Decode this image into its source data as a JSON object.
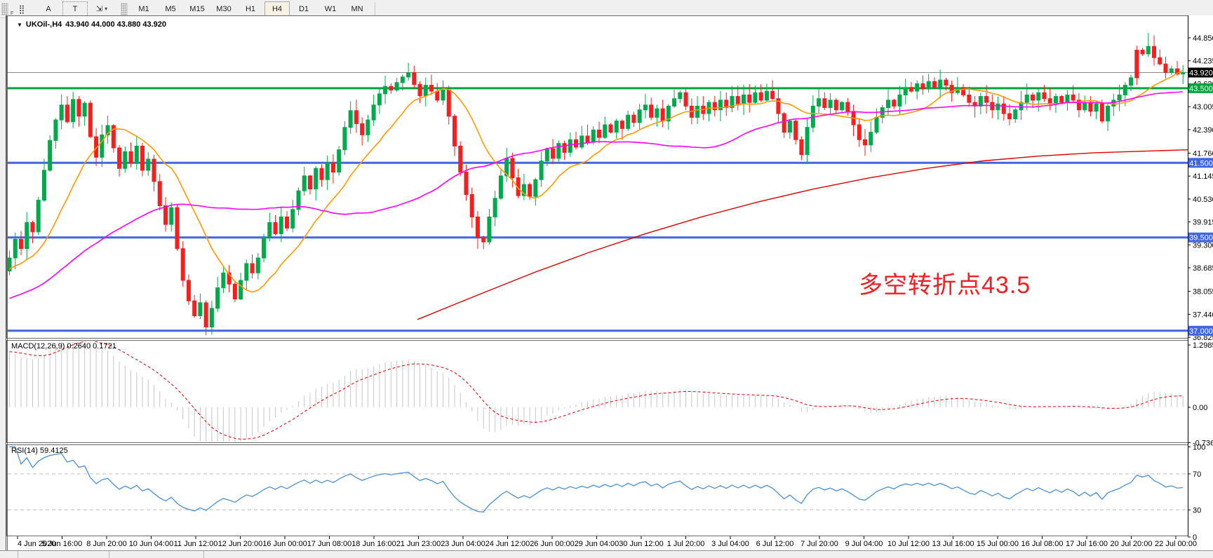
{
  "toolbar": {
    "icons": [
      {
        "name": "period-separators-icon",
        "glyph": "⣿",
        "sub": "F"
      },
      {
        "name": "text-label-icon",
        "glyph": "A"
      },
      {
        "name": "text-box-icon",
        "glyph": "T"
      },
      {
        "name": "arrows-tool-icon",
        "glyph": "⇲"
      },
      {
        "name": "dropdown-caret-icon",
        "glyph": "▾"
      }
    ],
    "timeframes": [
      "M1",
      "M5",
      "M15",
      "M30",
      "H1",
      "H4",
      "D1",
      "W1",
      "MN"
    ],
    "active_timeframe": "H4"
  },
  "chart": {
    "dropdown_glyph": "▼",
    "symbol_title": "UKOil-,H4",
    "ohlc_display": "43.940 44.000 43.880 43.920"
  },
  "annotation": {
    "text": "多空转折点43.5",
    "color": "#ed2024"
  },
  "macd_panel": {
    "label": "MACD(12,26,9) 0.2640 0.1721",
    "ticks": [
      "1.2985",
      "0.00",
      "-0.7362"
    ]
  },
  "rsi_panel": {
    "label": "RSI(14) 59.4125",
    "ticks": [
      "100",
      "70",
      "30",
      "0"
    ]
  },
  "price_axis_ticks": [
    "44.850",
    "44.235",
    "43.620",
    "43.005",
    "42.390",
    "41.760",
    "41.145",
    "40.530",
    "39.915",
    "39.300",
    "38.685",
    "38.055",
    "37.440",
    "36.825"
  ],
  "price_tags": [
    {
      "label": "43.920",
      "price": 43.92,
      "bg": "#000000"
    },
    {
      "label": "43.500",
      "price": 43.5,
      "bg": "#00a43c"
    },
    {
      "label": "41.500",
      "price": 41.5,
      "bg": "#4066e0"
    },
    {
      "label": "39.500",
      "price": 39.5,
      "bg": "#4066e0"
    },
    {
      "label": "37.000",
      "price": 37.0,
      "bg": "#4066e0"
    }
  ],
  "time_axis": [
    "4 Jun 2020",
    "5 Jun 16:00",
    "8 Jun 20:00",
    "10 Jun 04:00",
    "11 Jun 12:00",
    "12 Jun 20:00",
    "16 Jun 00:00",
    "17 Jun 08:00",
    "18 Jun 16:00",
    "21 Jun 23:00",
    "23 Jun 04:00",
    "24 Jun 12:00",
    "26 Jun 00:00",
    "29 Jun 04:00",
    "30 Jun 12:00",
    "1 Jul 20:00",
    "3 Jul 04:00",
    "6 Jul 12:00",
    "7 Jul 20:00",
    "9 Jul 04:00",
    "10 Jul 12:00",
    "13 Jul 16:00",
    "15 Jul 00:00",
    "16 Jul 08:00",
    "17 Jul 16:00",
    "20 Jul 20:00",
    "22 Jul 00:00"
  ],
  "chart_data": {
    "type": "candlestick",
    "symbol": "UKOil-",
    "timeframe": "H4",
    "current_ohlc": {
      "open": 43.94,
      "high": 44.0,
      "low": 43.88,
      "close": 43.92
    },
    "y_axis": {
      "min": 36.825,
      "max": 44.85
    },
    "up_color": "#00a94c",
    "down_color": "#f42020",
    "closes": [
      38.95,
      39.45,
      39.2,
      39.9,
      39.65,
      40.5,
      41.3,
      42.1,
      42.65,
      43.05,
      42.6,
      43.2,
      42.75,
      43.1,
      42.2,
      41.65,
      42.25,
      42.5,
      41.9,
      41.35,
      41.8,
      41.5,
      41.95,
      41.3,
      41.6,
      41.0,
      40.35,
      39.85,
      40.3,
      39.2,
      38.35,
      37.8,
      37.4,
      37.75,
      37.1,
      37.6,
      38.15,
      38.55,
      38.25,
      37.85,
      38.35,
      38.8,
      38.55,
      38.95,
      39.5,
      39.9,
      39.6,
      40.05,
      39.75,
      40.25,
      40.75,
      41.15,
      40.8,
      41.35,
      41.05,
      41.5,
      41.25,
      41.85,
      42.45,
      42.9,
      42.55,
      42.25,
      42.65,
      43.05,
      43.35,
      43.55,
      43.45,
      43.65,
      43.8,
      43.92,
      43.6,
      43.3,
      43.58,
      43.42,
      43.18,
      43.45,
      42.75,
      41.95,
      41.25,
      40.65,
      40.05,
      39.5,
      39.38,
      40.05,
      40.55,
      41.15,
      41.62,
      41.1,
      40.62,
      40.92,
      40.6,
      41.05,
      41.55,
      41.88,
      41.62,
      42.02,
      41.78,
      42.12,
      41.92,
      42.22,
      42.05,
      42.38,
      42.18,
      42.52,
      42.32,
      42.62,
      42.42,
      42.78,
      42.58,
      42.92,
      43.05,
      42.72,
      42.95,
      42.62,
      43.02,
      43.22,
      43.38,
      43.02,
      42.72,
      43.02,
      42.82,
      43.12,
      42.92,
      43.18,
      42.98,
      43.28,
      43.08,
      43.32,
      43.12,
      43.38,
      43.18,
      43.42,
      43.22,
      42.82,
      42.32,
      42.62,
      42.12,
      41.72,
      42.45,
      43.02,
      43.22,
      42.98,
      43.18,
      42.92,
      43.12,
      42.88,
      42.52,
      42.12,
      41.98,
      42.32,
      42.72,
      42.98,
      43.18,
      43.02,
      43.32,
      43.52,
      43.42,
      43.62,
      43.48,
      43.68,
      43.52,
      43.72,
      43.58,
      43.38,
      43.52,
      43.32,
      43.12,
      43.02,
      43.28,
      43.12,
      42.92,
      43.08,
      42.82,
      42.68,
      42.92,
      43.12,
      43.32,
      43.18,
      43.38,
      43.22,
      43.08,
      43.28,
      43.12,
      43.32,
      43.18,
      42.92,
      43.12,
      42.88,
      43.08,
      42.62,
      43.02,
      43.18,
      43.32,
      43.58,
      43.78,
      44.52,
      44.42,
      44.62,
      44.32,
      44.15,
      43.92,
      44.02,
      43.88,
      43.92
    ],
    "candle_overrides": {
      "force_down": [
        195
      ],
      "special_high": {
        "197": 44.98
      },
      "special_low": {
        "34": 36.88
      }
    },
    "moving_averages": [
      {
        "name": "fast-ma",
        "color": "#ff9900",
        "period": 13
      },
      {
        "name": "medium-ma",
        "color": "#ff00ff",
        "period": 45
      },
      {
        "name": "slow-ma",
        "color": "#e00000",
        "polyline": [
          [
            595,
            37.3
          ],
          [
            680,
            37.95
          ],
          [
            760,
            38.55
          ],
          [
            840,
            39.1
          ],
          [
            920,
            39.6
          ],
          [
            1000,
            40.05
          ],
          [
            1080,
            40.45
          ],
          [
            1160,
            40.8
          ],
          [
            1240,
            41.1
          ],
          [
            1320,
            41.35
          ],
          [
            1400,
            41.55
          ],
          [
            1480,
            41.68
          ],
          [
            1560,
            41.77
          ],
          [
            1693,
            41.85
          ]
        ]
      }
    ],
    "hlines": [
      {
        "price": 43.92,
        "color": "#8a8a8a",
        "width": 1,
        "note": "current price line"
      },
      {
        "price": 43.5,
        "color": "#00a43c",
        "width": 3,
        "note": "pivot 43.5"
      },
      {
        "price": 41.5,
        "color": "#4066e0",
        "width": 3
      },
      {
        "price": 39.5,
        "color": "#4066e0",
        "width": 3
      },
      {
        "price": 37.0,
        "color": "#4066e0",
        "width": 3
      }
    ],
    "macd": {
      "fast": 12,
      "slow": 26,
      "signal": 9,
      "current_macd": 0.264,
      "current_signal": 0.1721,
      "axis_max": 1.2985,
      "axis_min": -0.7362,
      "histogram_color": "#c6c6c6",
      "signal_color": "#e00000"
    },
    "rsi": {
      "period": 14,
      "current": 59.4125,
      "levels": [
        70,
        30
      ],
      "line_color": "#4a90d2",
      "level_color": "#bdbdbd"
    }
  }
}
